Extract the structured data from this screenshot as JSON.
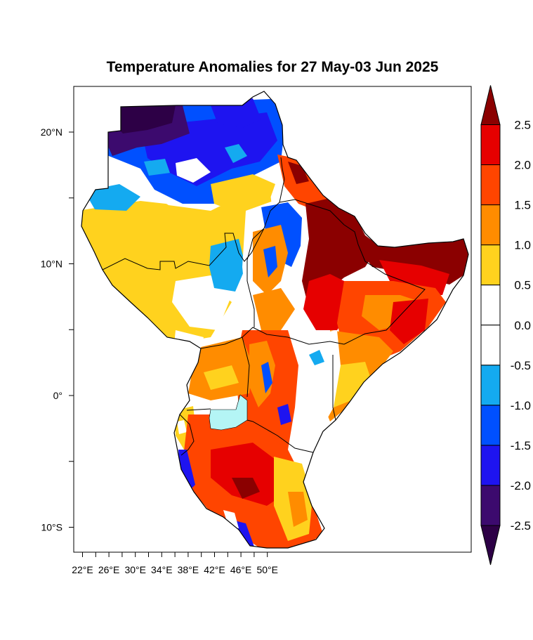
{
  "title": "Temperature Anomalies for 27 May-03 Jun 2025",
  "axes": {
    "lon_ticks": [
      {
        "lon": 22,
        "label": "22°E"
      },
      {
        "lon": 26,
        "label": "26°E"
      },
      {
        "lon": 30,
        "label": "30°E"
      },
      {
        "lon": 34,
        "label": "34°E"
      },
      {
        "lon": 38,
        "label": "38°E"
      },
      {
        "lon": 42,
        "label": "42°E"
      },
      {
        "lon": 46,
        "label": "46°E"
      },
      {
        "lon": 50,
        "label": "50°E"
      }
    ],
    "lat_ticks": [
      {
        "lat": 20,
        "label": "20°N"
      },
      {
        "lat": 10,
        "label": "10°N"
      },
      {
        "lat": 0,
        "label": "0°"
      },
      {
        "lat": -10,
        "label": "10°S"
      }
    ],
    "minor_lat_ticks": [
      15,
      5,
      -5
    ],
    "minor_lon_ticks": [
      24,
      28,
      32,
      36,
      40,
      44,
      48
    ]
  },
  "colorbar": {
    "labels": [
      "2.5",
      "2.0",
      "1.5",
      "1.0",
      "0.5",
      "0.0",
      "-0.5",
      "-1.0",
      "-1.5",
      "-2.0",
      "-2.5"
    ],
    "colors_top_to_bottom": [
      "#8b0000",
      "#e60000",
      "#ff4500",
      "#ff8c00",
      "#ffd21e",
      "#ffffff",
      "#ffffff",
      "#14aaf0",
      "#0050ff",
      "#1e14f0",
      "#3c0a6e",
      "#2d0046"
    ]
  },
  "legend_colors": {
    "dark_red": "#8b0000",
    "red": "#e60000",
    "orange_red": "#ff4500",
    "orange": "#ff8c00",
    "yellow": "#ffd21e",
    "white": "#ffffff",
    "light_blue": "#14aaf0",
    "blue": "#0050ff",
    "deep_blue": "#1e14f0",
    "purple": "#3c0a6e",
    "dark_purple": "#2d0046",
    "lake_cyan": "#b4f5f5"
  }
}
